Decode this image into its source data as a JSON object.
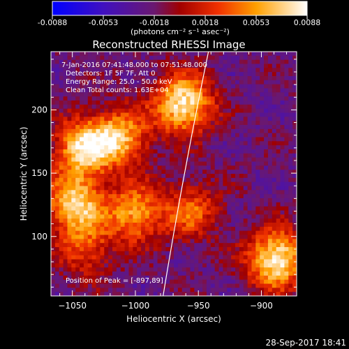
{
  "colorbar": {
    "ticks": [
      "-0.0088",
      "-0.0053",
      "-0.0018",
      "0.0018",
      "0.0053",
      "0.0088"
    ],
    "unit_label": "(photons cm⁻² s⁻¹ asec⁻²)"
  },
  "chart_data": {
    "type": "heatmap",
    "title": "Reconstructed RHESSI Image",
    "xlabel": "Heliocentric X (arcsec)",
    "ylabel": "Heliocentric Y (arcsec)",
    "xlim": [
      -1067,
      -872
    ],
    "ylim": [
      53,
      246
    ],
    "x_ticks": [
      -1050,
      -1000,
      -950,
      -900
    ],
    "y_ticks": [
      100,
      150,
      200
    ],
    "colorbar_range": [
      -0.0088,
      0.0088
    ],
    "sources": [
      {
        "x": -962,
        "y": 205,
        "intensity": 1.0
      },
      {
        "x": -1042,
        "y": 170,
        "intensity": 0.85
      },
      {
        "x": -1012,
        "y": 178,
        "intensity": 0.75
      },
      {
        "x": -1048,
        "y": 126,
        "intensity": 0.85
      },
      {
        "x": -1000,
        "y": 118,
        "intensity": 0.7
      },
      {
        "x": -888,
        "y": 82,
        "intensity": 1.0
      },
      {
        "x": -955,
        "y": 120,
        "intensity": 0.5
      },
      {
        "x": -1040,
        "y": 90,
        "intensity": 0.45
      }
    ],
    "annotations": [
      "7-Jan-2016 07:41:48.000 to 07:51:48.000",
      "Detectors: 1F 5F 7F, Att 0",
      "Energy Range: 25.0 - 50.0 keV",
      "Clean     Total counts: 1.63E+04",
      "Position of Peak = [-897,89]"
    ],
    "limb_curve": [
      [
        -978,
        53
      ],
      [
        -962,
        150
      ],
      [
        -942,
        246
      ]
    ]
  },
  "footer": {
    "timestamp": "28-Sep-2017 18:41"
  }
}
